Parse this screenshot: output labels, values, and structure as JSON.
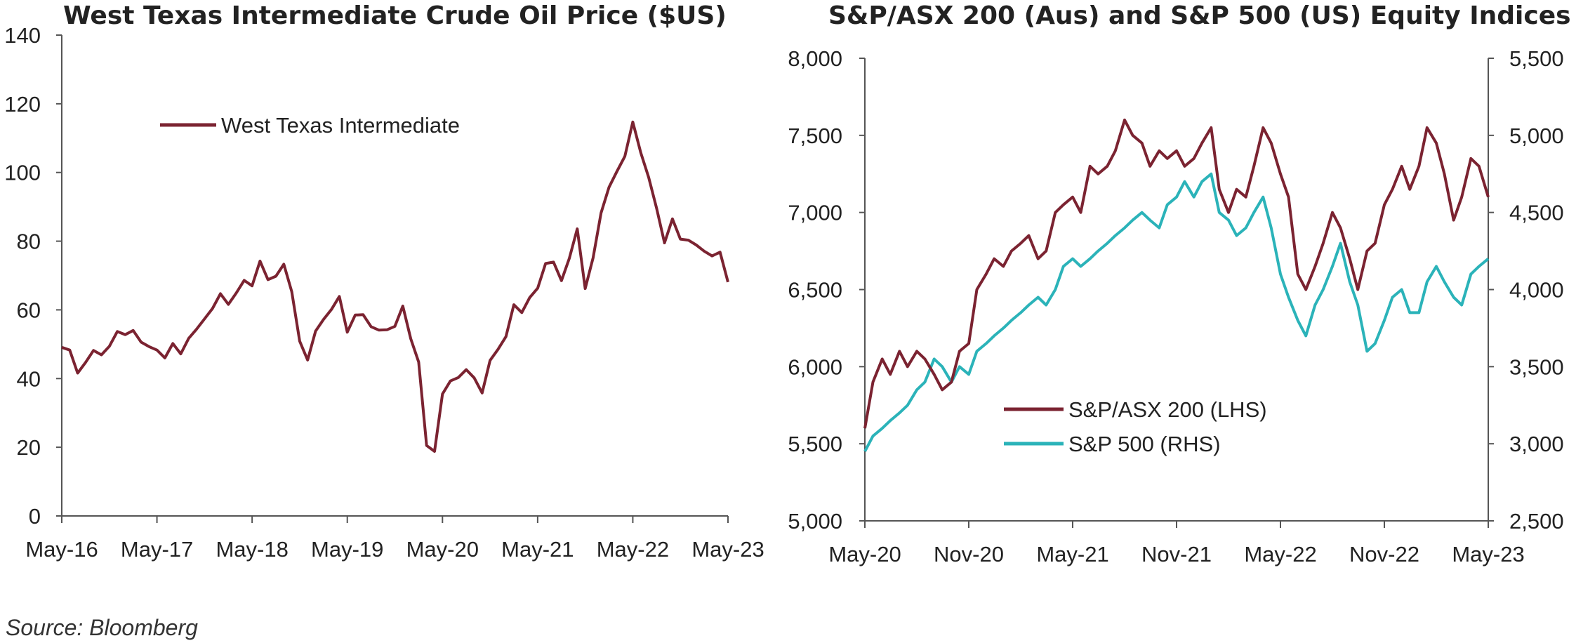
{
  "source": "Source: Bloomberg",
  "colors": {
    "wti": "#7b2331",
    "asx": "#7b2331",
    "spx": "#2bb3b9",
    "axis": "#555555"
  },
  "chart_data": [
    {
      "type": "line",
      "title": "West Texas Intermediate Crude Oil Price ($US)",
      "xlabel": "",
      "ylabel": "",
      "x_ticks": [
        "May-16",
        "May-17",
        "May-18",
        "May-19",
        "May-20",
        "May-21",
        "May-22",
        "May-23"
      ],
      "x_range": [
        "2016-05",
        "2023-05"
      ],
      "ylim": [
        0,
        140
      ],
      "y_ticks": [
        "0",
        "20",
        "40",
        "60",
        "80",
        "100",
        "120",
        "140"
      ],
      "grid": false,
      "legend_position": "top-left",
      "series": [
        {
          "name": "West Texas Intermediate",
          "x": [
            "2016-05",
            "2016-06",
            "2016-07",
            "2016-08",
            "2016-09",
            "2016-10",
            "2016-11",
            "2016-12",
            "2017-01",
            "2017-02",
            "2017-03",
            "2017-04",
            "2017-05",
            "2017-06",
            "2017-07",
            "2017-08",
            "2017-09",
            "2017-10",
            "2017-11",
            "2017-12",
            "2018-01",
            "2018-02",
            "2018-03",
            "2018-04",
            "2018-05",
            "2018-06",
            "2018-07",
            "2018-08",
            "2018-09",
            "2018-10",
            "2018-11",
            "2018-12",
            "2019-01",
            "2019-02",
            "2019-03",
            "2019-04",
            "2019-05",
            "2019-06",
            "2019-07",
            "2019-08",
            "2019-09",
            "2019-10",
            "2019-11",
            "2019-12",
            "2020-01",
            "2020-02",
            "2020-03",
            "2020-04",
            "2020-05",
            "2020-06",
            "2020-07",
            "2020-08",
            "2020-09",
            "2020-10",
            "2020-11",
            "2020-12",
            "2021-01",
            "2021-02",
            "2021-03",
            "2021-04",
            "2021-05",
            "2021-06",
            "2021-07",
            "2021-08",
            "2021-09",
            "2021-10",
            "2021-11",
            "2021-12",
            "2022-01",
            "2022-02",
            "2022-03",
            "2022-04",
            "2022-05",
            "2022-06",
            "2022-07",
            "2022-08",
            "2022-09",
            "2022-10",
            "2022-11",
            "2022-12",
            "2023-01",
            "2023-02",
            "2023-03",
            "2023-04",
            "2023-05"
          ],
          "values": [
            49.1,
            48.3,
            41.6,
            44.7,
            48.2,
            46.9,
            49.4,
            53.7,
            52.8,
            54.0,
            50.6,
            49.3,
            48.3,
            46.0,
            50.2,
            47.2,
            51.7,
            54.4,
            57.4,
            60.4,
            64.7,
            61.6,
            64.9,
            68.6,
            67.0,
            74.2,
            68.8,
            69.8,
            73.3,
            65.3,
            50.9,
            45.4,
            53.8,
            57.2,
            60.1,
            63.9,
            53.5,
            58.5,
            58.6,
            55.1,
            54.1,
            54.2,
            55.2,
            61.1,
            51.6,
            44.8,
            20.5,
            18.8,
            35.5,
            39.3,
            40.3,
            42.6,
            40.2,
            35.8,
            45.3,
            48.5,
            52.2,
            61.5,
            59.2,
            63.6,
            66.3,
            73.5,
            73.9,
            68.5,
            75.0,
            83.6,
            66.2,
            75.2,
            88.2,
            95.7,
            100.3,
            104.7,
            114.7,
            105.8,
            98.6,
            89.6,
            79.5,
            86.5,
            80.6,
            80.3,
            78.9,
            77.1,
            75.7,
            76.8,
            68.1
          ]
        }
      ]
    },
    {
      "type": "line",
      "title": "S&P/ASX 200 (Aus) and S&P 500 (US) Equity Indices",
      "xlabel": "",
      "x_ticks": [
        "May-20",
        "Nov-20",
        "May-21",
        "Nov-21",
        "May-22",
        "Nov-22",
        "May-23"
      ],
      "x_range": [
        "2020-05",
        "2023-05"
      ],
      "ylim_left": [
        5000,
        8000
      ],
      "ylim_right": [
        2500,
        5500
      ],
      "y_ticks_left": [
        "5,000",
        "5,500",
        "6,000",
        "6,500",
        "7,000",
        "7,500",
        "8,000"
      ],
      "y_ticks_right": [
        "2,500",
        "3,000",
        "3,500",
        "4,000",
        "4,500",
        "5,000",
        "5,500"
      ],
      "grid": false,
      "legend_position": "bottom-center",
      "series": [
        {
          "name": "S&P/ASX 200 (LHS)",
          "axis": "left",
          "x": [
            "2020-05-01",
            "2020-05-15",
            "2020-06-01",
            "2020-06-15",
            "2020-07-01",
            "2020-07-15",
            "2020-08-01",
            "2020-08-15",
            "2020-09-01",
            "2020-09-15",
            "2020-10-01",
            "2020-10-15",
            "2020-11-01",
            "2020-11-15",
            "2020-12-01",
            "2020-12-15",
            "2021-01-01",
            "2021-01-15",
            "2021-02-01",
            "2021-02-15",
            "2021-03-01",
            "2021-03-15",
            "2021-04-01",
            "2021-04-15",
            "2021-05-01",
            "2021-05-15",
            "2021-06-01",
            "2021-06-15",
            "2021-07-01",
            "2021-07-15",
            "2021-08-01",
            "2021-08-15",
            "2021-09-01",
            "2021-09-15",
            "2021-10-01",
            "2021-10-15",
            "2021-11-01",
            "2021-11-15",
            "2021-12-01",
            "2021-12-15",
            "2022-01-01",
            "2022-01-15",
            "2022-02-01",
            "2022-02-15",
            "2022-03-01",
            "2022-03-15",
            "2022-04-01",
            "2022-04-15",
            "2022-05-01",
            "2022-05-15",
            "2022-06-01",
            "2022-06-15",
            "2022-07-01",
            "2022-07-15",
            "2022-08-01",
            "2022-08-15",
            "2022-09-01",
            "2022-09-15",
            "2022-10-01",
            "2022-10-15",
            "2022-11-01",
            "2022-11-15",
            "2022-12-01",
            "2022-12-15",
            "2023-01-01",
            "2023-01-15",
            "2023-02-01",
            "2023-02-15",
            "2023-03-01",
            "2023-03-15",
            "2023-04-01",
            "2023-04-15",
            "2023-05-01"
          ],
          "values": [
            5600,
            5900,
            6050,
            5950,
            6100,
            6000,
            6100,
            6050,
            5950,
            5850,
            5900,
            6100,
            6150,
            6500,
            6600,
            6700,
            6650,
            6750,
            6800,
            6850,
            6700,
            6750,
            7000,
            7050,
            7100,
            7000,
            7300,
            7250,
            7300,
            7400,
            7600,
            7500,
            7450,
            7300,
            7400,
            7350,
            7400,
            7300,
            7350,
            7450,
            7550,
            7150,
            7000,
            7150,
            7100,
            7300,
            7550,
            7450,
            7250,
            7100,
            6600,
            6500,
            6650,
            6800,
            7000,
            6900,
            6700,
            6500,
            6750,
            6800,
            7050,
            7150,
            7300,
            7150,
            7300,
            7550,
            7450,
            7250,
            6950,
            7100,
            7350,
            7300,
            7100
          ]
        },
        {
          "name": "S&P 500 (RHS)",
          "axis": "right",
          "x": [
            "2020-05-01",
            "2020-05-15",
            "2020-06-01",
            "2020-06-15",
            "2020-07-01",
            "2020-07-15",
            "2020-08-01",
            "2020-08-15",
            "2020-09-01",
            "2020-09-15",
            "2020-10-01",
            "2020-10-15",
            "2020-11-01",
            "2020-11-15",
            "2020-12-01",
            "2020-12-15",
            "2021-01-01",
            "2021-01-15",
            "2021-02-01",
            "2021-02-15",
            "2021-03-01",
            "2021-03-15",
            "2021-04-01",
            "2021-04-15",
            "2021-05-01",
            "2021-05-15",
            "2021-06-01",
            "2021-06-15",
            "2021-07-01",
            "2021-07-15",
            "2021-08-01",
            "2021-08-15",
            "2021-09-01",
            "2021-09-15",
            "2021-10-01",
            "2021-10-15",
            "2021-11-01",
            "2021-11-15",
            "2021-12-01",
            "2021-12-15",
            "2022-01-01",
            "2022-01-15",
            "2022-02-01",
            "2022-02-15",
            "2022-03-01",
            "2022-03-15",
            "2022-04-01",
            "2022-04-15",
            "2022-05-01",
            "2022-05-15",
            "2022-06-01",
            "2022-06-15",
            "2022-07-01",
            "2022-07-15",
            "2022-08-01",
            "2022-08-15",
            "2022-09-01",
            "2022-09-15",
            "2022-10-01",
            "2022-10-15",
            "2022-11-01",
            "2022-11-15",
            "2022-12-01",
            "2022-12-15",
            "2023-01-01",
            "2023-01-15",
            "2023-02-01",
            "2023-02-15",
            "2023-03-01",
            "2023-03-15",
            "2023-04-01",
            "2023-04-15",
            "2023-05-01"
          ],
          "values": [
            2950,
            3050,
            3100,
            3150,
            3200,
            3250,
            3350,
            3400,
            3550,
            3500,
            3400,
            3500,
            3450,
            3600,
            3650,
            3700,
            3750,
            3800,
            3850,
            3900,
            3950,
            3900,
            4000,
            4150,
            4200,
            4150,
            4200,
            4250,
            4300,
            4350,
            4400,
            4450,
            4500,
            4450,
            4400,
            4550,
            4600,
            4700,
            4600,
            4700,
            4750,
            4500,
            4450,
            4350,
            4400,
            4500,
            4600,
            4400,
            4100,
            3950,
            3800,
            3700,
            3900,
            4000,
            4150,
            4300,
            4050,
            3900,
            3600,
            3650,
            3800,
            3950,
            4000,
            3850,
            3850,
            4050,
            4150,
            4050,
            3950,
            3900,
            4100,
            4150,
            4200
          ]
        }
      ]
    }
  ]
}
